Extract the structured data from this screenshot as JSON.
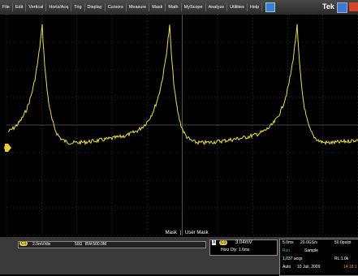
{
  "menu": {
    "items": [
      "File",
      "Edit",
      "Vertical",
      "Horiz/Acq",
      "Trig",
      "Display",
      "Cursors",
      "Measure",
      "Mask",
      "Math",
      "MyScope",
      "Analyze",
      "Utilities",
      "Help"
    ],
    "brand": "Tek"
  },
  "screen": {
    "mask_label": "Mask",
    "mask_name": "User Mask"
  },
  "status": {
    "channel": "C1",
    "scale": "2.0mV/div",
    "impedance": "50Ω",
    "bandwidth": "BW:500.0M",
    "trigger_source": "A",
    "trigger_channel": "C1",
    "trigger_level": "3.04mV",
    "horz_delay": "Horz Dly: 1.6ms",
    "timebase": "5.0ms",
    "sample_rate": "20.0GS/s",
    "resolution": "50.0ps/pt",
    "run_state": "Run",
    "mode": "Sample",
    "acqs": "1,037 acqs",
    "record_length": "RL:1.0k",
    "trigger_mode": "Auto",
    "date": "10 Juli, 2009",
    "time": "14:18:1"
  }
}
